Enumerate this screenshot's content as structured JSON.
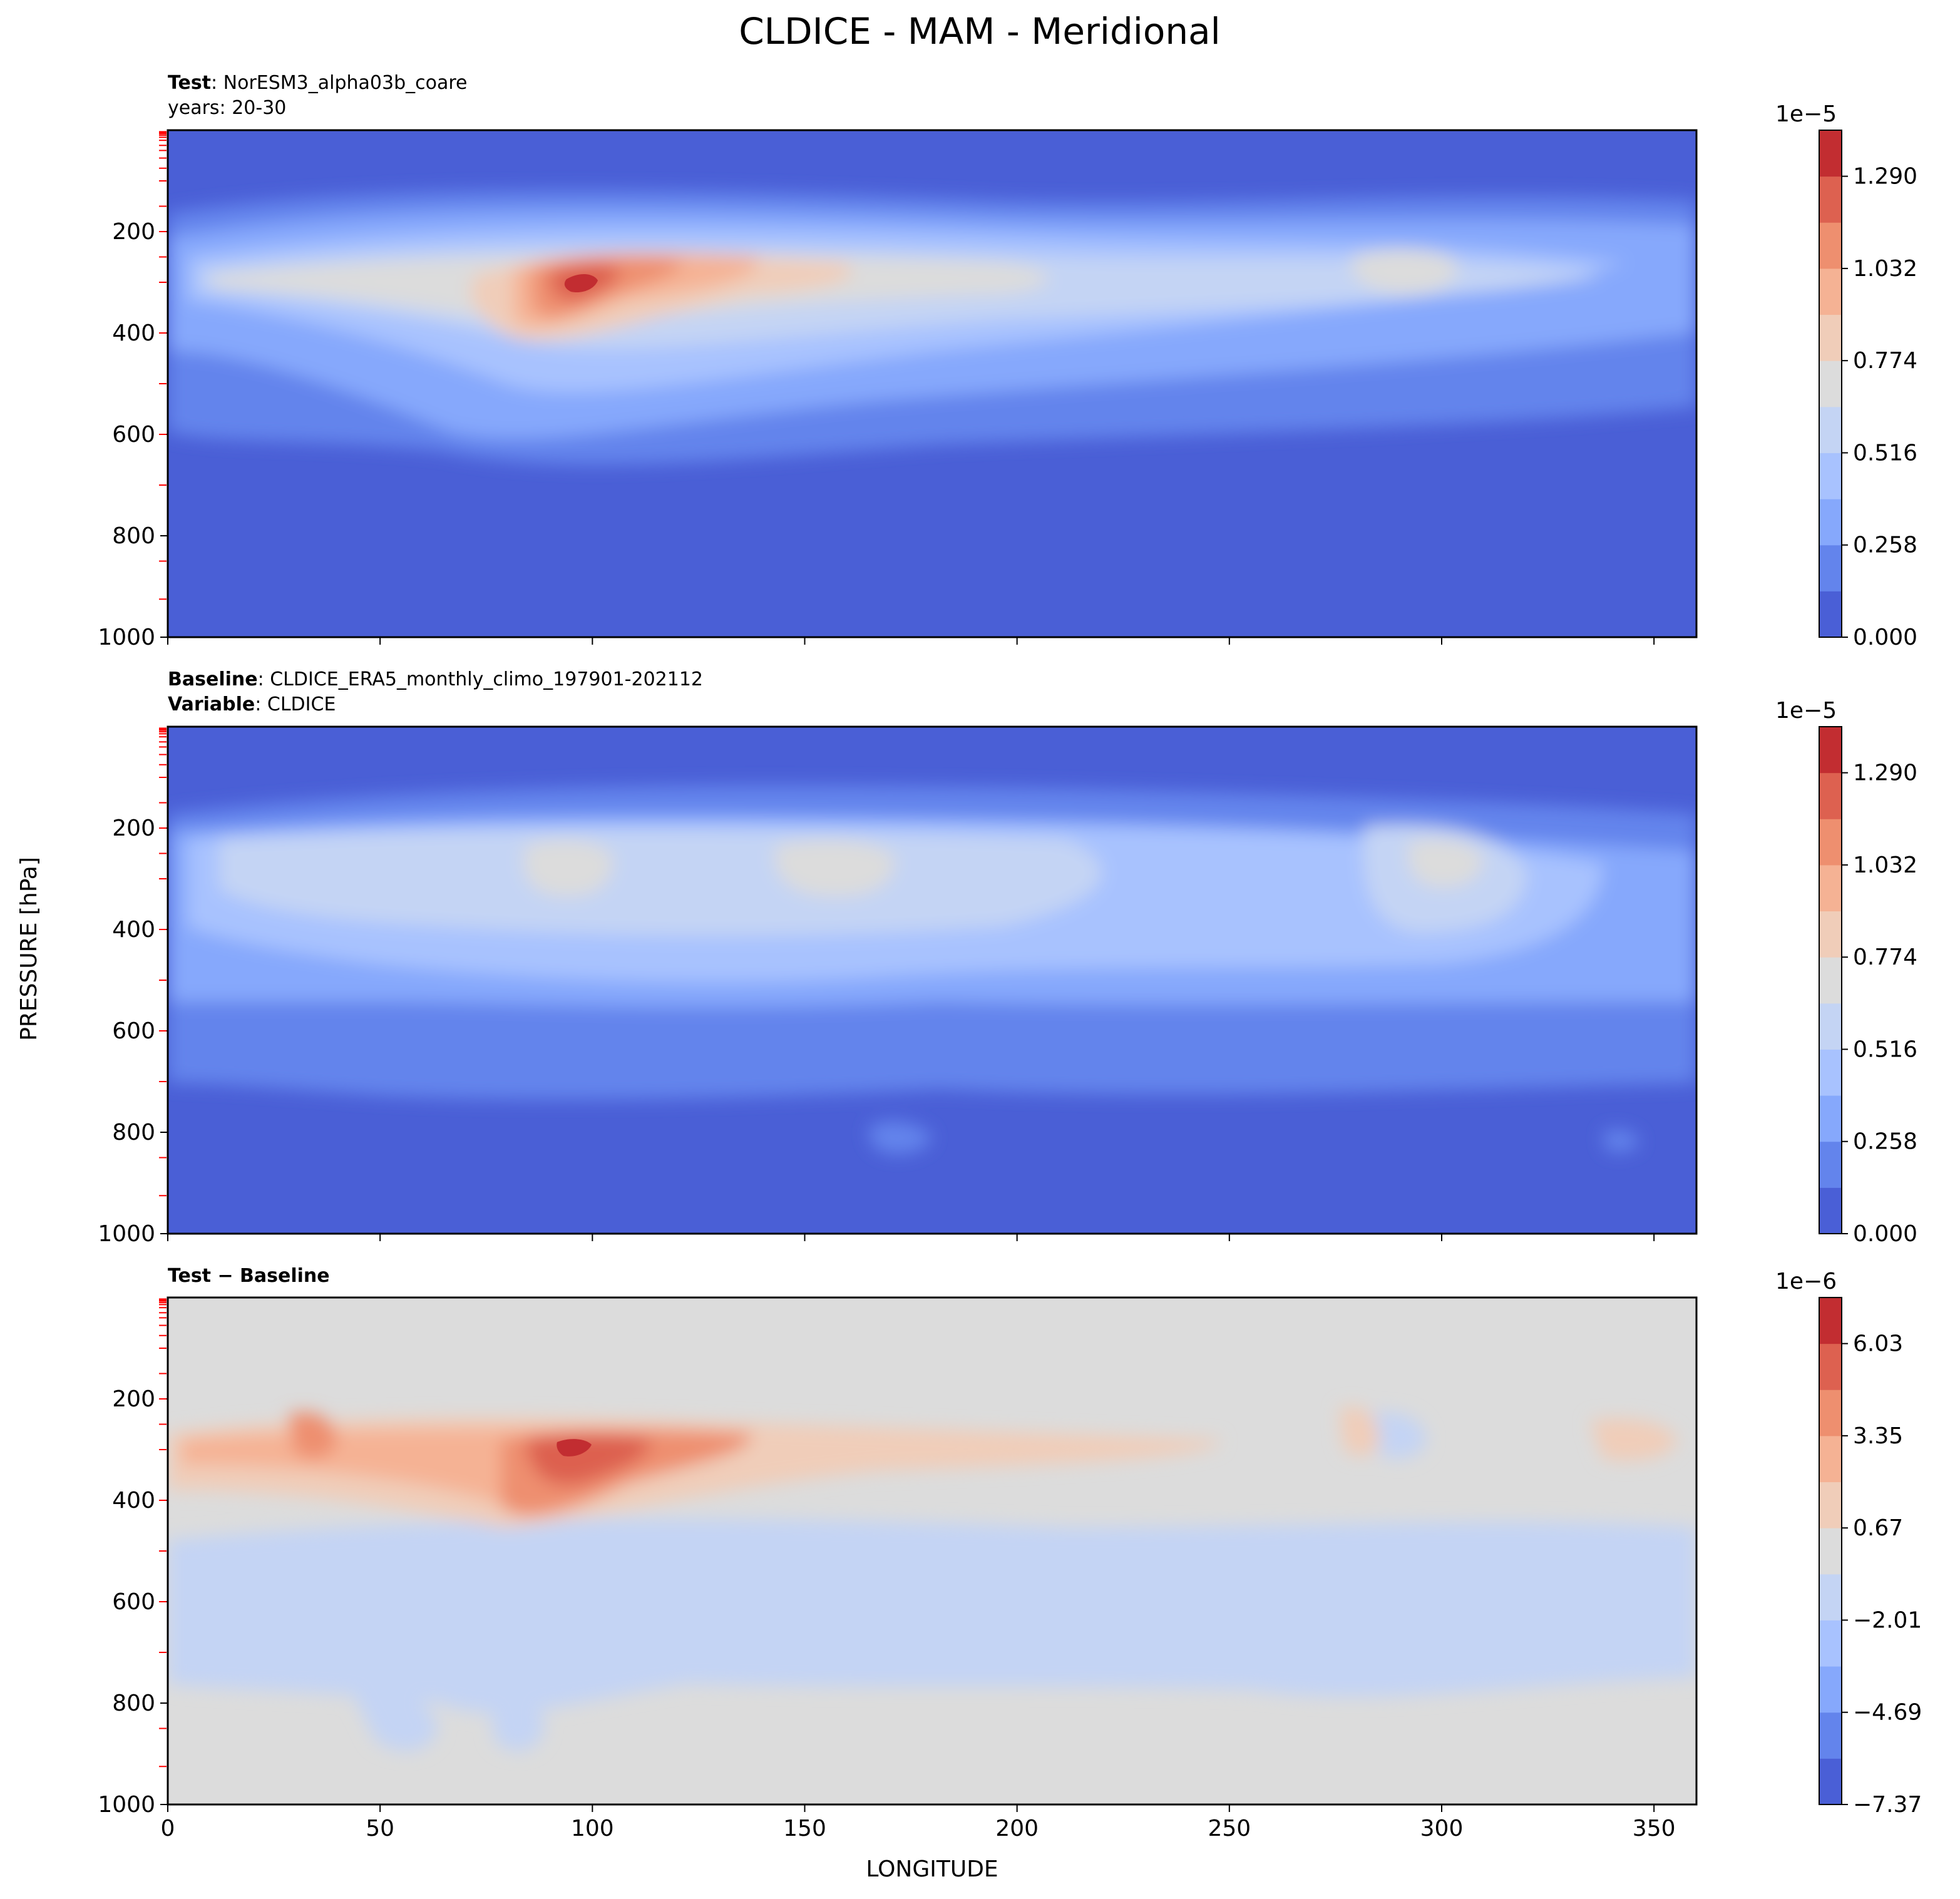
{
  "title": "CLDICE - MAM - Meridional",
  "shared_axes": {
    "ylabel": "PRESSURE [hPa]",
    "xlabel": "LONGITUDE"
  },
  "colors": {
    "cmap": [
      "#4a5fd6",
      "#6384ec",
      "#86a8fc",
      "#a8c2fe",
      "#c4d4f4",
      "#dcdcdc",
      "#f0cdb9",
      "#f5b294",
      "#ee8f6f",
      "#dd6150",
      "#c22d31"
    ],
    "tick_red": "#ff0000"
  },
  "panels": [
    {
      "id": "test",
      "subtitle1_bold": "Test",
      "subtitle1_text": ": NorESM3_alpha03b_coare",
      "subtitle2_text": "years: 20-30",
      "colorbar_exponent": "1e−5",
      "colorbar_labels": [
        "1.290",
        "1.032",
        "0.774",
        "0.516",
        "0.258",
        "0.000"
      ]
    },
    {
      "id": "baseline",
      "subtitle1_bold": "Baseline",
      "subtitle1_text": ": CLDICE_ERA5_monthly_climo_197901-202112",
      "subtitle2_bold": "Variable",
      "subtitle2_text": ": CLDICE",
      "colorbar_exponent": "1e−5",
      "colorbar_labels": [
        "1.290",
        "1.032",
        "0.774",
        "0.516",
        "0.258",
        "0.000"
      ]
    },
    {
      "id": "diff",
      "subtitle1_bold": "Test − Baseline",
      "colorbar_exponent": "1e−6",
      "colorbar_labels": [
        "6.03",
        "3.35",
        "0.67",
        "−2.01",
        "−4.69",
        "−7.37"
      ]
    }
  ],
  "chart_data": [
    {
      "type": "heatmap",
      "title": "Test: NorESM3_alpha03b_coare (years: 20-30)",
      "xlabel": "LONGITUDE",
      "ylabel": "PRESSURE [hPa]",
      "xlim": [
        0,
        360
      ],
      "ylim": [
        1000,
        0
      ],
      "x_ticks": [
        0,
        50,
        100,
        150,
        200,
        250,
        300,
        350
      ],
      "y_ticks": [
        200,
        400,
        600,
        800,
        1000
      ],
      "x_tick_labels": [
        "0",
        "50",
        "100",
        "150",
        "200",
        "250",
        "300",
        "350"
      ],
      "y_tick_labels": [
        "200",
        "400",
        "600",
        "800",
        "1000"
      ],
      "colorbar": {
        "exponent": "1e-5",
        "min": 0.0,
        "max": 1.419,
        "levels": 12,
        "tick_values": [
          0.0,
          0.258,
          0.516,
          0.774,
          1.032,
          1.29
        ]
      },
      "features": [
        {
          "desc": "upper-tropospheric maximum",
          "lon": [
            80,
            140
          ],
          "p": [
            220,
            420
          ],
          "peak": 1.35
        },
        {
          "desc": "secondary maximum",
          "lon": [
            280,
            300
          ],
          "p": [
            240,
            310
          ],
          "peak": 0.8
        }
      ]
    },
    {
      "type": "heatmap",
      "title": "Baseline: CLDICE_ERA5_monthly_climo_197901-202112 (Variable: CLDICE)",
      "xlabel": "LONGITUDE",
      "ylabel": "PRESSURE [hPa]",
      "xlim": [
        0,
        360
      ],
      "ylim": [
        1000,
        0
      ],
      "x_ticks": [
        0,
        50,
        100,
        150,
        200,
        250,
        300,
        350
      ],
      "y_ticks": [
        200,
        400,
        600,
        800,
        1000
      ],
      "x_tick_labels": [
        "0",
        "50",
        "100",
        "150",
        "200",
        "250",
        "300",
        "350"
      ],
      "y_tick_labels": [
        "200",
        "400",
        "600",
        "800",
        "1000"
      ],
      "colorbar": {
        "exponent": "1e-5",
        "min": 0.0,
        "max": 1.419,
        "levels": 12,
        "tick_values": [
          0.0,
          0.258,
          0.516,
          0.774,
          1.032,
          1.29
        ]
      },
      "features": [
        {
          "desc": "broad ice layer",
          "lon": [
            10,
            340
          ],
          "p": [
            200,
            550
          ],
          "peak": 0.78
        },
        {
          "desc": "maximum",
          "lon": [
            140,
            170
          ],
          "p": [
            240,
            330
          ],
          "peak": 0.8
        }
      ]
    },
    {
      "type": "heatmap",
      "title": "Test − Baseline",
      "xlabel": "LONGITUDE",
      "ylabel": "PRESSURE [hPa]",
      "xlim": [
        0,
        360
      ],
      "ylim": [
        1000,
        0
      ],
      "x_ticks": [
        0,
        50,
        100,
        150,
        200,
        250,
        300,
        350
      ],
      "y_ticks": [
        200,
        400,
        600,
        800,
        1000
      ],
      "x_tick_labels": [
        "0",
        "50",
        "100",
        "150",
        "200",
        "250",
        "300",
        "350"
      ],
      "y_tick_labels": [
        "200",
        "400",
        "600",
        "800",
        "1000"
      ],
      "colorbar": {
        "exponent": "1e-6",
        "min": -7.37,
        "max": 7.37,
        "levels": 12,
        "tick_values": [
          -7.37,
          -4.69,
          -2.01,
          0.67,
          3.35,
          6.03
        ]
      },
      "features": [
        {
          "desc": "positive anomaly",
          "lon": [
            80,
            140
          ],
          "p": [
            240,
            420
          ],
          "peak": 6.5
        },
        {
          "desc": "negative anomaly",
          "lon": [
            280,
            320
          ],
          "p": [
            400,
            520
          ],
          "peak": -3.0
        }
      ]
    }
  ]
}
